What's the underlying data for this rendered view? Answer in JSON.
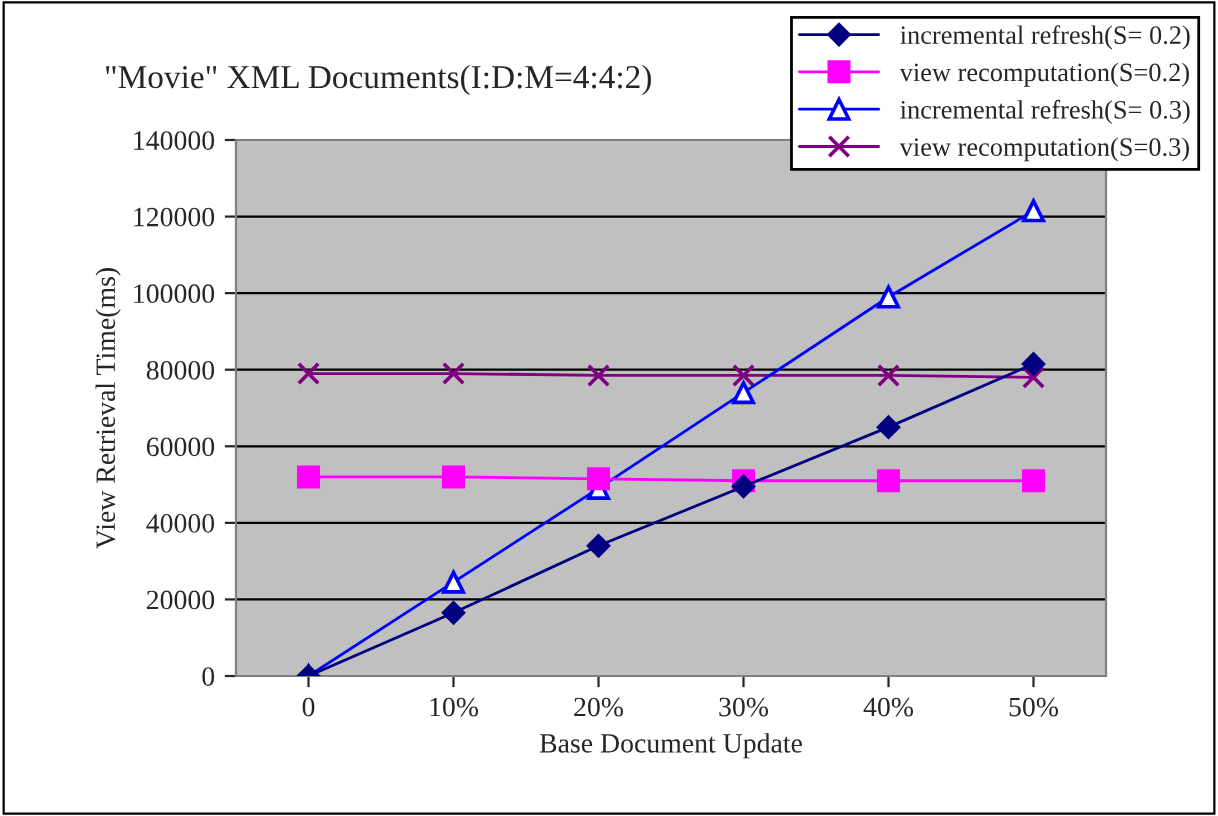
{
  "chart_data": {
    "type": "line",
    "title": "\"Movie\" XML Documents(I:D:M=4:4:2)",
    "xlabel": "Base Document Update",
    "ylabel": "View Retrieval Time(ms)",
    "categories": [
      "0",
      "10%",
      "20%",
      "30%",
      "40%",
      "50%"
    ],
    "series": [
      {
        "name": "incremental refresh(S= 0.2)",
        "color": "#000080",
        "marker": "diamond",
        "values": [
          0,
          16500,
          34000,
          49500,
          65000,
          81500
        ]
      },
      {
        "name": "view recomputation(S=0.2)",
        "color": "#ff00ff",
        "marker": "square",
        "values": [
          52000,
          52000,
          51500,
          51000,
          51000,
          51000
        ]
      },
      {
        "name": "incremental refresh(S= 0.3)",
        "color": "#0000ff",
        "marker": "triangle",
        "values": [
          0,
          24500,
          49000,
          74000,
          99000,
          121500
        ]
      },
      {
        "name": "view recomputation(S=0.3)",
        "color": "#800080",
        "marker": "cross",
        "values": [
          79000,
          79000,
          78500,
          78500,
          78500,
          78000
        ]
      }
    ],
    "ylim": [
      0,
      140000
    ],
    "yticks": [
      0,
      20000,
      40000,
      60000,
      80000,
      100000,
      120000,
      140000
    ],
    "grid": "y",
    "legend": "top right",
    "line_style": "solid"
  }
}
